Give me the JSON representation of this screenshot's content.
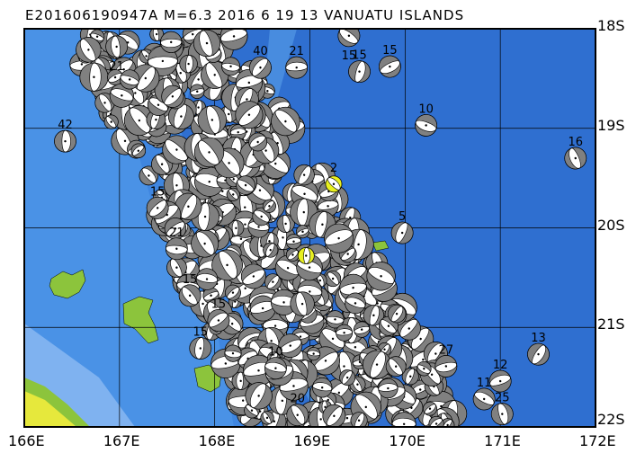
{
  "map": {
    "title": "E201606190947A M=6.3 2016 6 19 13 VANUATU ISLANDS",
    "lon_range": [
      166,
      172
    ],
    "lat_range": [
      -18,
      -22
    ],
    "lon_ticks": [
      "166E",
      "167E",
      "168E",
      "169E",
      "170E",
      "171E",
      "172E"
    ],
    "lat_ticks": [
      "18S",
      "19S",
      "20S",
      "21S",
      "22S"
    ],
    "grid": true,
    "colors": {
      "ocean_deep": "#2f6fd0",
      "ocean_mid": "#3f86e0",
      "ocean_shallow": "#7fb2f0",
      "land": "#8cc43c",
      "land_high": "#e6e83c",
      "beachball_fill": "#808080",
      "highlight": "#e8f020"
    },
    "events": [
      {
        "lon": 166.43,
        "lat": -19.13,
        "label": "42"
      },
      {
        "lon": 167.4,
        "lat": -19.8,
        "label": "15"
      },
      {
        "lon": 167.6,
        "lat": -20.21,
        "label": "21"
      },
      {
        "lon": 167.74,
        "lat": -20.68,
        "label": "15"
      },
      {
        "lon": 167.85,
        "lat": -21.21,
        "label": "15"
      },
      {
        "lon": 168.04,
        "lat": -20.93,
        "label": "15"
      },
      {
        "lon": 168.64,
        "lat": -21.41,
        "label": "10"
      },
      {
        "lon": 168.87,
        "lat": -21.88,
        "label": "20"
      },
      {
        "lon": 169.52,
        "lat": -18.43,
        "label": "15"
      },
      {
        "lon": 169.84,
        "lat": -18.38,
        "label": "15"
      },
      {
        "lon": 170.22,
        "lat": -18.97,
        "label": "10"
      },
      {
        "lon": 171.79,
        "lat": -19.3,
        "label": "16"
      },
      {
        "lon": 169.97,
        "lat": -20.05,
        "label": "5"
      },
      {
        "lon": 171.0,
        "lat": -21.54,
        "label": "12"
      },
      {
        "lon": 170.83,
        "lat": -21.72,
        "label": "11"
      },
      {
        "lon": 171.02,
        "lat": -21.87,
        "label": "25"
      },
      {
        "lon": 171.4,
        "lat": -21.27,
        "label": "13"
      },
      {
        "lon": 170.43,
        "lat": -21.39,
        "label": "27"
      },
      {
        "lon": 169.41,
        "lat": -18.07,
        "label": "15"
      },
      {
        "lon": 166.97,
        "lat": -18.18,
        "label": "21"
      },
      {
        "lon": 168.48,
        "lat": -18.39,
        "label": "40"
      },
      {
        "lon": 168.86,
        "lat": -18.39,
        "label": "21"
      },
      {
        "lon": 169.25,
        "lat": -19.56,
        "label": "2",
        "highlight": true
      },
      {
        "lon": 168.96,
        "lat": -20.28,
        "label": "",
        "highlight": true
      }
    ]
  }
}
